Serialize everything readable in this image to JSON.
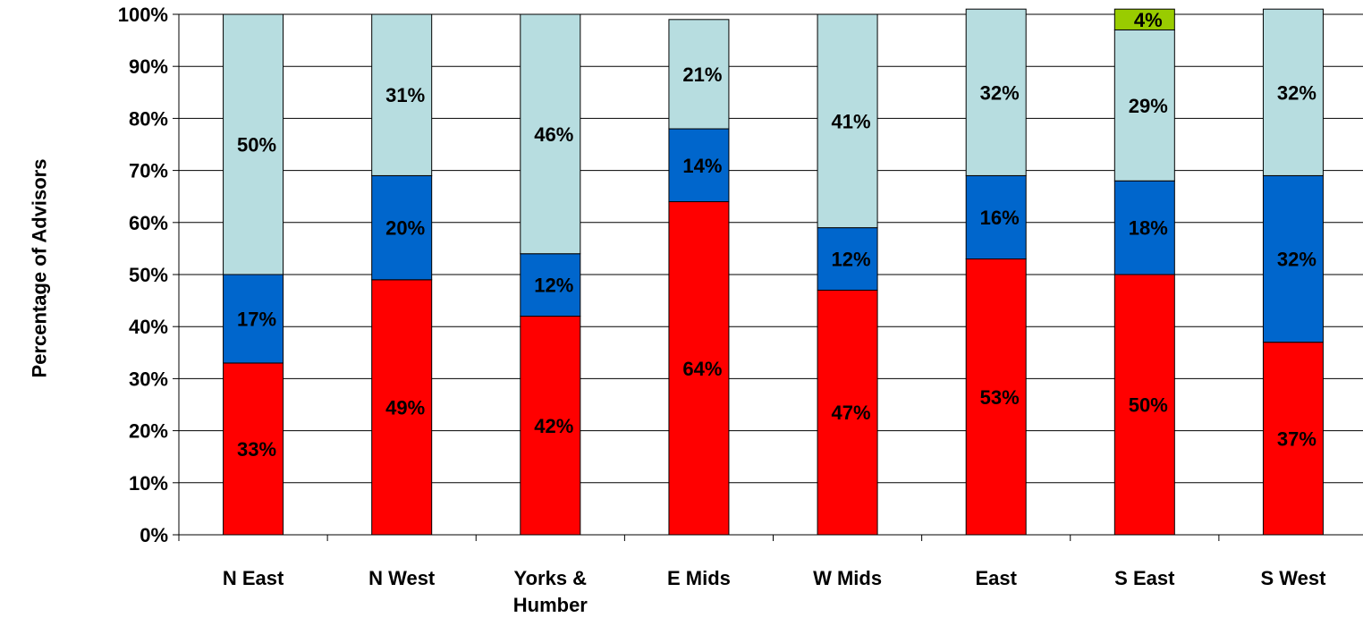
{
  "chart_data": {
    "type": "bar",
    "stacked": true,
    "ylabel": "Percentage of Advisors",
    "ylim": [
      0,
      100
    ],
    "yticks": [
      "0%",
      "10%",
      "20%",
      "30%",
      "40%",
      "50%",
      "60%",
      "70%",
      "80%",
      "90%",
      "100%"
    ],
    "categories": [
      "N East",
      "N West",
      "Yorks & Humber",
      "E Mids",
      "W Mids",
      "East",
      "S East",
      "S West"
    ],
    "category_lines": [
      [
        "N East"
      ],
      [
        "N West"
      ],
      [
        "Yorks &",
        "Humber"
      ],
      [
        "E Mids"
      ],
      [
        "W Mids"
      ],
      [
        "East"
      ],
      [
        "S East"
      ],
      [
        "S West"
      ]
    ],
    "grid": true,
    "legend": "none",
    "series": [
      {
        "color": "#ff0000",
        "values": [
          33,
          49,
          42,
          64,
          47,
          53,
          50,
          37
        ]
      },
      {
        "color": "#0066cc",
        "values": [
          17,
          20,
          12,
          14,
          12,
          16,
          18,
          32
        ]
      },
      {
        "color": "#b7dde0",
        "values": [
          50,
          31,
          46,
          21,
          41,
          32,
          29,
          32
        ]
      },
      {
        "color": "#99cc00",
        "values": [
          0,
          0,
          0,
          0,
          0,
          0,
          4,
          0
        ]
      }
    ]
  }
}
